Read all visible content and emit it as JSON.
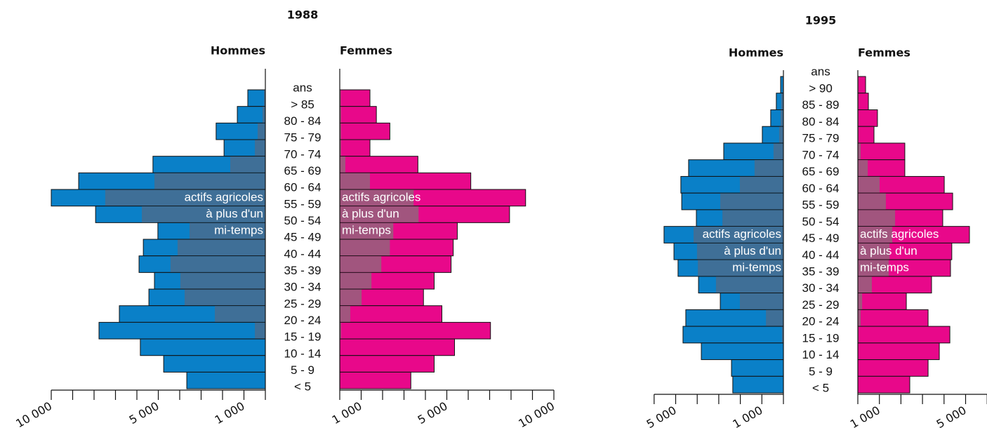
{
  "chart_data": [
    {
      "type": "population-pyramid",
      "title": "1988",
      "ylabel": "ans",
      "categories": [
        "> 85",
        "80 - 84",
        "75 - 79",
        "70 - 74",
        "65 - 69",
        "60 - 64",
        "55 - 59",
        "50 - 54",
        "45 - 49",
        "40 - 44",
        "35 - 39",
        "30 - 34",
        "25 - 29",
        "20 - 24",
        "15 - 19",
        "10 - 14",
        "5 - 9",
        "< 5"
      ],
      "annotation": [
        "actifs agricoles",
        "à plus d'un",
        "mi-temps"
      ],
      "series": [
        {
          "name": "Hommes",
          "color": "#0a80c8",
          "part_color": "#3f6f97",
          "values": [
            820,
            1310,
            2300,
            1930,
            5250,
            8720,
            10000,
            7930,
            5020,
            5700,
            5900,
            5180,
            5440,
            6820,
            7770,
            5840,
            4750,
            3670
          ],
          "part_values": [
            65,
            130,
            360,
            490,
            1640,
            5180,
            7480,
            5770,
            3540,
            4100,
            4430,
            3970,
            3770,
            2360,
            490,
            0,
            0,
            0
          ],
          "xlim": [
            0,
            10000
          ],
          "xticks": [
            {
              "value": 1000,
              "label": "1 000"
            },
            {
              "value": 5000,
              "label": "5 000"
            },
            {
              "value": 10000,
              "label": "10 000"
            }
          ],
          "minor_xticks": [
            0,
            1000,
            2000,
            3000,
            4000,
            5000,
            6000,
            7000,
            8000,
            9000,
            10000
          ]
        },
        {
          "name": "Femmes",
          "color": "#e8088a",
          "part_color": "#a1557e",
          "values": [
            1410,
            1710,
            2340,
            1410,
            3650,
            6120,
            8680,
            7930,
            5490,
            5300,
            5200,
            4410,
            3910,
            4770,
            7040,
            5360,
            4410,
            3320
          ],
          "part_values": [
            50,
            60,
            60,
            60,
            260,
            1410,
            3450,
            3680,
            2500,
            2340,
            1940,
            1480,
            1020,
            490,
            60,
            0,
            0,
            0
          ],
          "xlim": [
            0,
            10000
          ],
          "xticks": [
            {
              "value": 1000,
              "label": "1 000"
            },
            {
              "value": 5000,
              "label": "5 000"
            },
            {
              "value": 10000,
              "label": "10 000"
            }
          ],
          "minor_xticks": [
            0,
            1000,
            2000,
            3000,
            4000,
            5000,
            6000,
            7000,
            8000,
            9000,
            10000
          ]
        }
      ]
    },
    {
      "type": "population-pyramid",
      "title": "1995",
      "ylabel": "ans",
      "categories": [
        "> 90",
        "85 - 89",
        "80 - 84",
        "75 - 79",
        "70 - 74",
        "65 - 69",
        "60 - 64",
        "55 - 59",
        "50 - 54",
        "45 - 49",
        "40 - 44",
        "35 - 39",
        "30 - 34",
        "25 - 29",
        "20 - 24",
        "15 - 19",
        "10 - 14",
        "5 - 9",
        "< 5"
      ],
      "annotation": [
        "actifs agricoles",
        "à plus d'un",
        "mi-temps"
      ],
      "series": [
        {
          "name": "Hommes",
          "color": "#0a80c8",
          "part_color": "#3f6f97",
          "values": [
            130,
            330,
            590,
            980,
            2770,
            4400,
            4760,
            4720,
            4040,
            5540,
            5080,
            4890,
            3940,
            2930,
            4530,
            4660,
            3810,
            2410,
            2350
          ],
          "part_values": [
            30,
            100,
            130,
            200,
            460,
            1340,
            2020,
            2930,
            2830,
            4170,
            4010,
            3970,
            3130,
            2020,
            810,
            70,
            0,
            0,
            0
          ],
          "xlim": [
            0,
            6000
          ],
          "xticks": [
            {
              "value": 1000,
              "label": "1 000"
            },
            {
              "value": 5000,
              "label": "5 000"
            }
          ],
          "minor_xticks": [
            0,
            1000,
            2000,
            3000,
            4000,
            5000,
            6000
          ]
        },
        {
          "name": "Femmes",
          "color": "#e8088a",
          "part_color": "#a1557e",
          "values": [
            360,
            490,
            910,
            750,
            2180,
            2180,
            4010,
            4400,
            3940,
            5180,
            4360,
            4300,
            3420,
            2250,
            3260,
            4270,
            3780,
            3260,
            2410
          ],
          "part_values": [
            30,
            30,
            30,
            30,
            130,
            460,
            1010,
            1300,
            1730,
            1600,
            1470,
            1430,
            650,
            200,
            130,
            30,
            0,
            0,
            0
          ],
          "xlim": [
            0,
            6000
          ],
          "xticks": [
            {
              "value": 1000,
              "label": "1 000"
            },
            {
              "value": 5000,
              "label": "5 000"
            }
          ],
          "minor_xticks": [
            0,
            1000,
            2000,
            3000,
            4000,
            5000,
            6000
          ]
        }
      ]
    }
  ]
}
